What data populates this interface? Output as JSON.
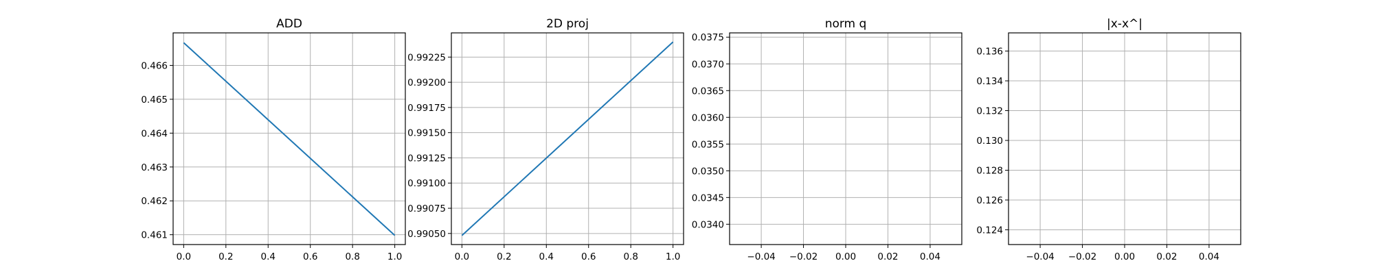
{
  "chart_data": [
    {
      "type": "line",
      "title": "ADD",
      "xlim": [
        -0.05,
        1.05
      ],
      "ylim": [
        0.46071,
        0.46696
      ],
      "xticks": [
        0.0,
        0.2,
        0.4,
        0.6,
        0.8,
        1.0
      ],
      "xtick_labels": [
        "0.0",
        "0.2",
        "0.4",
        "0.6",
        "0.8",
        "1.0"
      ],
      "yticks": [
        0.461,
        0.462,
        0.463,
        0.464,
        0.465,
        0.466
      ],
      "ytick_labels": [
        "0.461",
        "0.462",
        "0.463",
        "0.464",
        "0.465",
        "0.466"
      ],
      "grid": true,
      "color": "#1f77b4",
      "series": [
        {
          "x": [
            0,
            1
          ],
          "y": [
            0.46667,
            0.46098
          ]
        }
      ]
    },
    {
      "type": "line",
      "title": "2D proj",
      "xlim": [
        -0.05,
        1.05
      ],
      "ylim": [
        0.99039,
        0.99249
      ],
      "xticks": [
        0.0,
        0.2,
        0.4,
        0.6,
        0.8,
        1.0
      ],
      "xtick_labels": [
        "0.0",
        "0.2",
        "0.4",
        "0.6",
        "0.8",
        "1.0"
      ],
      "yticks": [
        0.9905,
        0.99075,
        0.991,
        0.99125,
        0.9915,
        0.99175,
        0.992,
        0.99225
      ],
      "ytick_labels": [
        "0.99050",
        "0.99075",
        "0.99100",
        "0.99125",
        "0.99150",
        "0.99175",
        "0.99200",
        "0.99225"
      ],
      "grid": true,
      "color": "#1f77b4",
      "series": [
        {
          "x": [
            0,
            1
          ],
          "y": [
            0.99048,
            0.9924
          ]
        }
      ]
    },
    {
      "type": "line",
      "title": "norm q",
      "xlim": [
        -0.055,
        0.055
      ],
      "ylim": [
        0.03362,
        0.03758
      ],
      "xticks": [
        -0.04,
        -0.02,
        0.0,
        0.02,
        0.04
      ],
      "xtick_labels": [
        "−0.04",
        "−0.02",
        "0.00",
        "0.02",
        "0.04"
      ],
      "yticks": [
        0.034,
        0.0345,
        0.035,
        0.0355,
        0.036,
        0.0365,
        0.037,
        0.0375
      ],
      "ytick_labels": [
        "0.0340",
        "0.0345",
        "0.0350",
        "0.0355",
        "0.0360",
        "0.0365",
        "0.0370",
        "0.0375"
      ],
      "grid": true,
      "color": "#1f77b4",
      "series": [
        {
          "x": [],
          "y": []
        }
      ]
    },
    {
      "type": "line",
      "title": "|x-x^|",
      "xlim": [
        -0.055,
        0.055
      ],
      "ylim": [
        0.12301,
        0.13722
      ],
      "xticks": [
        -0.04,
        -0.02,
        0.0,
        0.02,
        0.04
      ],
      "xtick_labels": [
        "−0.04",
        "−0.02",
        "0.00",
        "0.02",
        "0.04"
      ],
      "yticks": [
        0.124,
        0.126,
        0.128,
        0.13,
        0.132,
        0.134,
        0.136
      ],
      "ytick_labels": [
        "0.124",
        "0.126",
        "0.128",
        "0.130",
        "0.132",
        "0.134",
        "0.136"
      ],
      "grid": true,
      "color": "#1f77b4",
      "series": [
        {
          "x": [],
          "y": []
        }
      ]
    }
  ]
}
